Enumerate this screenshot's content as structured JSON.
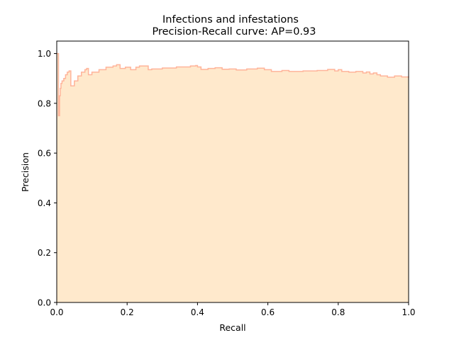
{
  "chart_data": {
    "type": "area",
    "title": "Infections and infestations",
    "subtitle": "Precision-Recall curve: AP=0.93",
    "xlabel": "Recall",
    "ylabel": "Precision",
    "xlim": [
      0.0,
      1.0
    ],
    "ylim": [
      0.0,
      1.05
    ],
    "xticks": [
      0.0,
      0.2,
      0.4,
      0.6,
      0.8,
      1.0
    ],
    "xtick_labels": [
      "0.0",
      "0.2",
      "0.4",
      "0.6",
      "0.8",
      "1.0"
    ],
    "yticks": [
      0.0,
      0.2,
      0.4,
      0.6,
      0.8,
      1.0
    ],
    "ytick_labels": [
      "0.0",
      "0.2",
      "0.4",
      "0.6",
      "0.8",
      "1.0"
    ],
    "grid": false,
    "step": "post",
    "fill_color": "#ffe9cc",
    "line_color": "#ffb49a",
    "series": [
      {
        "x": [
          0.0,
          0.005,
          0.008,
          0.01,
          0.012,
          0.015,
          0.02,
          0.025,
          0.03,
          0.035,
          0.04,
          0.05,
          0.06,
          0.07,
          0.08,
          0.085,
          0.09,
          0.1,
          0.12,
          0.14,
          0.16,
          0.17,
          0.18,
          0.195,
          0.21,
          0.225,
          0.235,
          0.26,
          0.27,
          0.3,
          0.34,
          0.38,
          0.395,
          0.4,
          0.41,
          0.43,
          0.45,
          0.47,
          0.49,
          0.51,
          0.54,
          0.57,
          0.59,
          0.61,
          0.64,
          0.66,
          0.7,
          0.74,
          0.77,
          0.79,
          0.8,
          0.81,
          0.83,
          0.85,
          0.87,
          0.88,
          0.89,
          0.9,
          0.91,
          0.92,
          0.94,
          0.96,
          0.98,
          1.0
        ],
        "y": [
          1.0,
          0.75,
          0.83,
          0.86,
          0.88,
          0.89,
          0.9,
          0.915,
          0.925,
          0.93,
          0.87,
          0.89,
          0.91,
          0.925,
          0.935,
          0.94,
          0.915,
          0.925,
          0.935,
          0.945,
          0.95,
          0.955,
          0.94,
          0.945,
          0.935,
          0.945,
          0.95,
          0.935,
          0.938,
          0.942,
          0.946,
          0.95,
          0.952,
          0.946,
          0.936,
          0.94,
          0.943,
          0.937,
          0.938,
          0.934,
          0.938,
          0.941,
          0.935,
          0.928,
          0.932,
          0.928,
          0.93,
          0.932,
          0.936,
          0.93,
          0.935,
          0.928,
          0.925,
          0.928,
          0.922,
          0.926,
          0.918,
          0.922,
          0.915,
          0.91,
          0.905,
          0.91,
          0.906,
          0.903
        ]
      }
    ]
  }
}
